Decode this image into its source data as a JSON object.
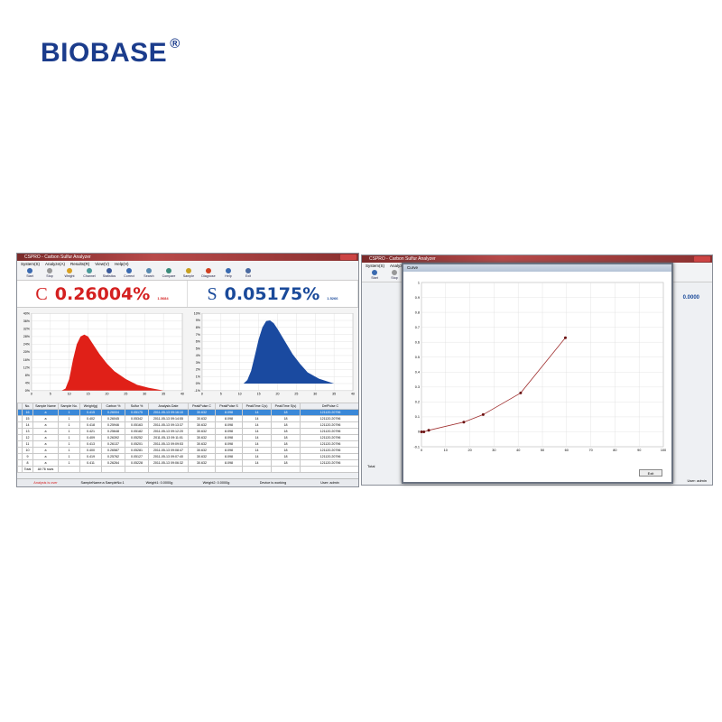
{
  "brand": {
    "logo": "BIOBASE",
    "reg": "®"
  },
  "left_window": {
    "title": "CSPRO - Carbon Sulfur Analyzer",
    "menu": [
      "System(S)",
      "Analyze(A)",
      "Results(R)",
      "View(V)",
      "Help(H)"
    ],
    "toolbar": [
      "Start",
      "Stop",
      "Weight",
      "Channel",
      "Statistics",
      "Correct",
      "Search",
      "Compare",
      "Sample",
      "Diagnose",
      "Help",
      "Exit"
    ],
    "carbon": {
      "element": "C",
      "value": "0.26004%",
      "sub": "1.5684",
      "color": "#d42020"
    },
    "sulfur": {
      "element": "S",
      "value": "0.05175%",
      "sub": "1.5266",
      "color": "#1a4a9a"
    },
    "table": {
      "headers": [
        "No.",
        "Sample Name",
        "Sample No.",
        "Weight(g)",
        "Carbon %",
        "Sulfur %",
        "Analysis Date",
        "PeakPulse C",
        "PeakPulse S",
        "PeakTime C(s)",
        "PeakTime S(s)",
        "DefPulse C"
      ],
      "rows": [
        [
          "16",
          "a",
          "1",
          "0.415",
          "0.26004",
          "0.05175",
          "2011-05-13 09:16:10",
          "30.632",
          "8.098",
          "14",
          "18",
          "121120.20796"
        ],
        [
          "15",
          "a",
          "1",
          "0.402",
          "0.26045",
          "0.05342",
          "2011-05-13 09:14:55",
          "30.632",
          "8.098",
          "14",
          "18",
          "121120.20796"
        ],
        [
          "14",
          "a",
          "1",
          "0.418",
          "0.25946",
          "0.05163",
          "2011-05-13 09:13:37",
          "30.632",
          "8.098",
          "14",
          "18",
          "121120.20796"
        ],
        [
          "13",
          "a",
          "1",
          "0.421",
          "0.25648",
          "0.05182",
          "2011-05-13 09:12:20",
          "30.632",
          "8.098",
          "14",
          "18",
          "121120.20796"
        ],
        [
          "12",
          "a",
          "1",
          "0.409",
          "0.26392",
          "0.05252",
          "2011-05-13 09:11:01",
          "30.632",
          "8.098",
          "14",
          "18",
          "121120.20796"
        ],
        [
          "11",
          "a",
          "1",
          "0.413",
          "0.26137",
          "0.05201",
          "2011-05-13 09:09:53",
          "30.632",
          "8.098",
          "14",
          "18",
          "121120.20796"
        ],
        [
          "10",
          "a",
          "1",
          "0.400",
          "0.26587",
          "0.05281",
          "2011-05-13 09:08:47",
          "30.632",
          "8.098",
          "14",
          "18",
          "121120.20796"
        ],
        [
          "9",
          "a",
          "1",
          "0.419",
          "0.25762",
          "0.05127",
          "2011-05-13 09:07:40",
          "30.632",
          "8.098",
          "14",
          "18",
          "121120.20796"
        ],
        [
          "8",
          "a",
          "1",
          "0.411",
          "0.26264",
          "0.05228",
          "2011-05-13 09:06:32",
          "30.632",
          "8.098",
          "14",
          "18",
          "121120.20796"
        ]
      ],
      "total_label": "Total",
      "total_value": "All 76 rows"
    },
    "status": [
      "Analysis is over",
      "SampleName:a  SampleNo:1",
      "Weight1: 0.0000g",
      "Weight2: 0.0000g",
      "Device is working",
      "User: admin"
    ]
  },
  "right_window": {
    "title": "CSPRO - Carbon Sulfur Analyzer",
    "menu": [
      "System(S)",
      "Analyze"
    ],
    "toolbar": [
      "Start",
      "Stop"
    ],
    "partial_value": "0.0000",
    "total_label": "Total",
    "user": "User: admin",
    "dialog_title": "Curve",
    "exit_label": "Exit"
  },
  "chart_data": [
    {
      "type": "area",
      "series": [
        {
          "color": "#e02018",
          "x": [
            0,
            8,
            9,
            10,
            11,
            12,
            13,
            14,
            15,
            16,
            18,
            20,
            22,
            25,
            28,
            31,
            35
          ],
          "y": [
            0,
            0,
            1,
            6,
            16,
            24,
            28,
            29,
            28,
            25,
            19,
            14,
            10,
            6,
            3,
            1.5,
            0
          ]
        }
      ],
      "xlim": [
        0,
        40
      ],
      "ylim": [
        0,
        40
      ],
      "xticks": [
        0,
        5,
        10,
        15,
        20,
        25,
        30,
        35,
        40
      ],
      "yticks": [
        "0%",
        "4%",
        "8%",
        "12%",
        "16%",
        "20%",
        "24%",
        "28%",
        "32%",
        "36%",
        "40%"
      ],
      "grid": true
    },
    {
      "type": "area",
      "series": [
        {
          "color": "#1a4aa0",
          "x": [
            0,
            11,
            12,
            13,
            14,
            15,
            16,
            17,
            18,
            19,
            20,
            22,
            24,
            26,
            28,
            31,
            35
          ],
          "y": [
            0,
            0,
            0.5,
            1.8,
            4,
            6.3,
            8,
            8.9,
            9,
            8.6,
            7.8,
            6,
            4.2,
            2.8,
            1.6,
            0.7,
            0
          ]
        }
      ],
      "xlim": [
        0,
        40
      ],
      "ylim": [
        -1,
        10
      ],
      "xticks": [
        0,
        5,
        10,
        15,
        20,
        25,
        30,
        35,
        40
      ],
      "yticks": [
        "-1%",
        "0%",
        "1%",
        "2%",
        "3%",
        "4%",
        "5%",
        "6%",
        "7%",
        "8%",
        "9%",
        "10%"
      ],
      "grid": true
    },
    {
      "type": "line",
      "series": [
        {
          "color": "#a03030",
          "x": [
            0,
            1,
            3,
            17.5,
            25.5,
            41,
            59.5
          ],
          "y": [
            0,
            0,
            0.01,
            0.065,
            0.115,
            0.26,
            0.63
          ]
        }
      ],
      "xlim": [
        0,
        100
      ],
      "ylim": [
        -0.1,
        1
      ],
      "xticks": [
        0,
        10,
        20,
        30,
        40,
        50,
        60,
        70,
        80,
        90,
        100
      ],
      "yticks": [
        "-0.1",
        "0",
        "0.1",
        "0.2",
        "0.3",
        "0.4",
        "0.5",
        "0.6",
        "0.7",
        "0.8",
        "0.9",
        "1"
      ],
      "grid": true
    }
  ]
}
